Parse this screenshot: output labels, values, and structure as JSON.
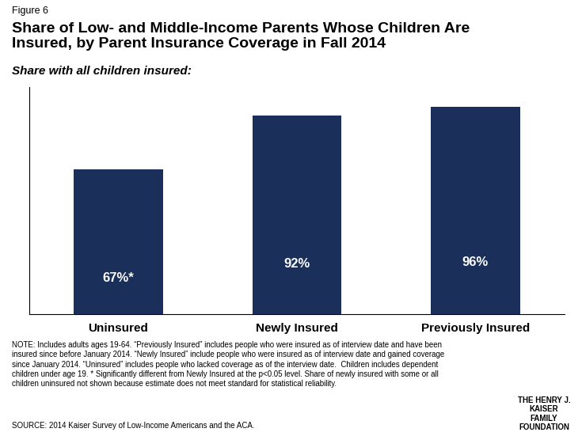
{
  "chart_data": {
    "type": "bar",
    "title": "Share of Low- and Middle-Income Parents Whose Children Are\nInsured, by Parent Insurance Coverage in Fall 2014",
    "subtitle": "Share with all children insured:",
    "annotations": [
      "Figure 6",
      "NOTE: Includes adults ages 19-64. “Previously Insured” includes people who were insured as of interview date and have been\ninsured since before January 2014. “Newly Insured” include people who were insured as of interview date and gained coverage\nsince January 2014. “Uninsured” includes people who lacked coverage as of the interview date.  Children includes dependent\nchildren under age 19. * Significantly different from Newly Insured at the p<0.05 level. Share of newly insured with some or all\nchildren uninsured not shown because estimate does not meet standard for statistical reliability.",
      "SOURCE: 2014 Kaiser Survey of Low-Income Americans and the ACA.",
      "THE HENRY J.\nKAISER\nFAMILY\nFOUNDATION"
    ],
    "categories": [
      "Uninsured",
      "Newly Insured",
      "Previously Insured"
    ],
    "values": [
      67,
      92,
      96
    ],
    "value_labels": [
      "67%*",
      "92%",
      "96%"
    ],
    "data_labels": true,
    "color": "#1a2f5a",
    "ylim": [
      0,
      105
    ],
    "tick_labels": "x"
  }
}
